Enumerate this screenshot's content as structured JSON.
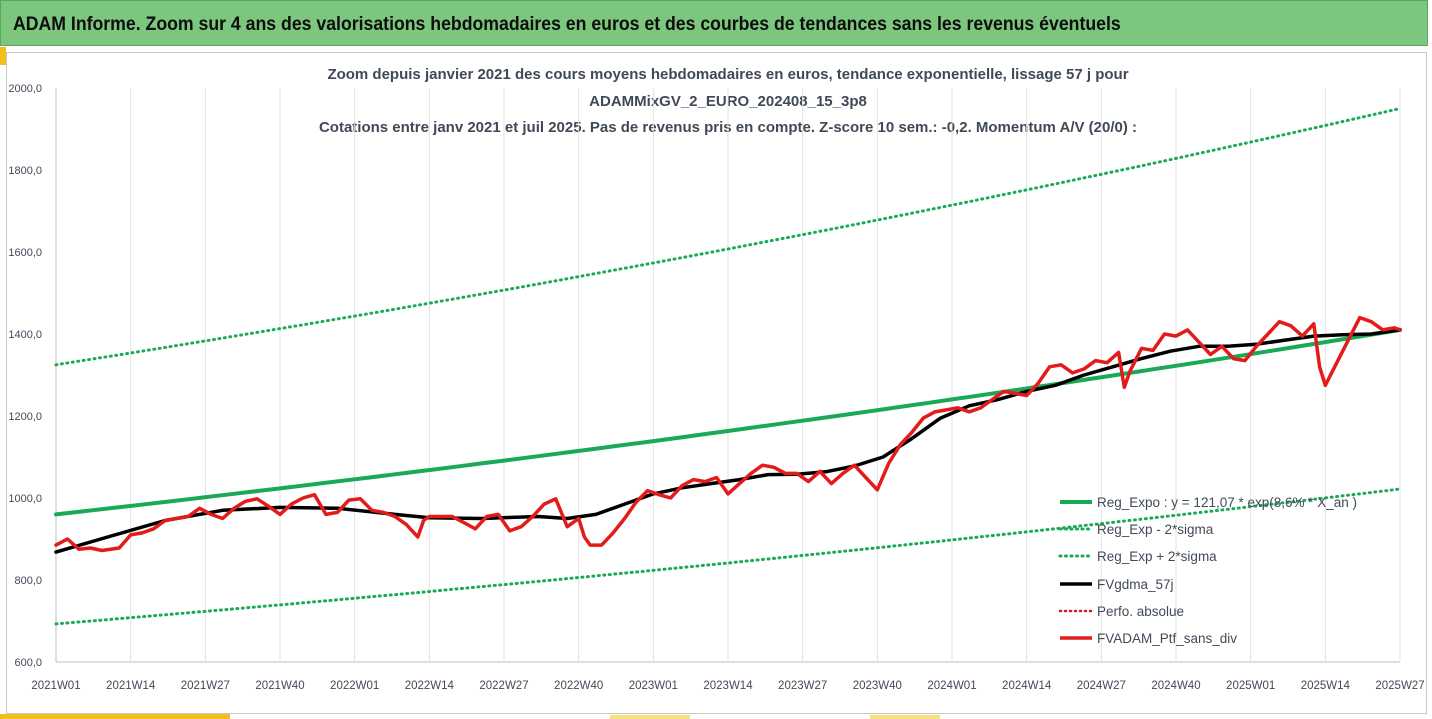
{
  "banner": {
    "title": "ADAM Informe. Zoom sur 4 ans des valorisations hebdomadaires en euros et des courbes de tendances sans les revenus éventuels"
  },
  "chart_data": {
    "type": "line",
    "title": "Zoom depuis janvier 2021 des cours moyens hebdomadaires  en euros, tendance exponentielle, lissage 57 j pour",
    "subtitle": "ADAMMixGV_2_EURO_202408_15_3p8",
    "subtitle2": "Cotations entre janv 2021 et juil 2025. Pas de revenus pris en compte. Z-score 10 sem.: -0,2. Momentum A/V (20/0) :",
    "xlabel": "",
    "ylabel": "",
    "ylim": [
      600,
      2000
    ],
    "yticks": [
      "600,0",
      "800,0",
      "1000,0",
      "1200,0",
      "1400,0",
      "1600,0",
      "1800,0",
      "2000,0"
    ],
    "xlim": [
      1,
      235
    ],
    "xticks": [
      {
        "week": 1,
        "label": "2021W01"
      },
      {
        "week": 14,
        "label": "2021W14"
      },
      {
        "week": 27,
        "label": "2021W27"
      },
      {
        "week": 40,
        "label": "2021W40"
      },
      {
        "week": 53,
        "label": "2022W01"
      },
      {
        "week": 66,
        "label": "2022W14"
      },
      {
        "week": 79,
        "label": "2022W27"
      },
      {
        "week": 92,
        "label": "2022W40"
      },
      {
        "week": 105,
        "label": "2023W01"
      },
      {
        "week": 118,
        "label": "2023W14"
      },
      {
        "week": 131,
        "label": "2023W27"
      },
      {
        "week": 144,
        "label": "2023W40"
      },
      {
        "week": 157,
        "label": "2024W01"
      },
      {
        "week": 170,
        "label": "2024W14"
      },
      {
        "week": 183,
        "label": "2024W27"
      },
      {
        "week": 196,
        "label": "2024W40"
      },
      {
        "week": 209,
        "label": "2025W01"
      },
      {
        "week": 222,
        "label": "2025W14"
      },
      {
        "week": 235,
        "label": "2025W27"
      }
    ],
    "grid": "vertical",
    "legend_position": "right",
    "colors": {
      "reg_expo": "#1aaa55",
      "sigma": "#1aaa55",
      "fvgdma": "#000000",
      "perfo": "#cc1f1f",
      "ptf": "#e31b1b",
      "grid": "#e2e2e2",
      "axis_text": "#404a57"
    },
    "series": [
      {
        "name": "Reg_Expo : y = 121,07 * exp(8,6% * X_an )",
        "key": "reg_expo",
        "style": "solid-thick",
        "x": [
          1,
          235
        ],
        "exp_from_to": [
          960,
          1410
        ]
      },
      {
        "name": "Reg_Exp - 2*sigma",
        "key": "sigma_low",
        "style": "dotted",
        "x": [
          1,
          235
        ],
        "exp_from_to": [
          693,
          1022
        ]
      },
      {
        "name": "Reg_Exp + 2*sigma",
        "key": "sigma_high",
        "style": "dotted",
        "x": [
          1,
          235
        ],
        "exp_from_to": [
          1325,
          1950
        ]
      },
      {
        "name": "FVgdma_57j",
        "key": "fvgdma",
        "style": "solid-thick",
        "x": [
          1,
          10,
          20,
          30,
          40,
          50,
          60,
          66,
          75,
          85,
          90,
          95,
          100,
          105,
          110,
          115,
          120,
          125,
          130,
          135,
          140,
          145,
          150,
          155,
          160,
          165,
          170,
          175,
          180,
          185,
          190,
          195,
          200,
          205,
          210,
          215,
          220,
          225,
          230,
          235
        ],
        "values": [
          868,
          905,
          945,
          970,
          977,
          975,
          960,
          952,
          950,
          955,
          950,
          960,
          985,
          1010,
          1025,
          1035,
          1045,
          1057,
          1058,
          1064,
          1078,
          1100,
          1145,
          1195,
          1225,
          1240,
          1260,
          1275,
          1300,
          1320,
          1340,
          1358,
          1370,
          1370,
          1375,
          1385,
          1395,
          1398,
          1400,
          1410
        ]
      },
      {
        "name": "Perfo. absolue",
        "key": "perfo",
        "style": "dotted"
      },
      {
        "name": "FVADAM_Ptf_sans_div",
        "key": "ptf",
        "style": "solid-thick",
        "x": [
          1,
          3,
          5,
          7,
          9,
          12,
          14,
          16,
          18,
          20,
          22,
          24,
          26,
          28,
          30,
          32,
          34,
          36,
          38,
          40,
          42,
          44,
          46,
          48,
          50,
          52,
          54,
          56,
          58,
          60,
          62,
          64,
          65,
          66,
          68,
          70,
          72,
          74,
          76,
          78,
          80,
          82,
          84,
          86,
          88,
          90,
          92,
          93,
          94,
          96,
          98,
          100,
          102,
          104,
          106,
          108,
          110,
          112,
          114,
          116,
          118,
          120,
          122,
          124,
          126,
          128,
          130,
          132,
          134,
          136,
          138,
          140,
          142,
          144,
          146,
          148,
          150,
          152,
          154,
          156,
          158,
          160,
          162,
          164,
          166,
          168,
          170,
          172,
          174,
          176,
          178,
          180,
          182,
          184,
          186,
          187,
          188,
          190,
          192,
          194,
          196,
          198,
          200,
          202,
          204,
          206,
          208,
          210,
          212,
          214,
          216,
          218,
          220,
          221,
          222,
          224,
          226,
          228,
          230,
          232,
          234,
          235
        ],
        "values": [
          885,
          900,
          875,
          878,
          872,
          878,
          910,
          915,
          925,
          945,
          950,
          955,
          975,
          960,
          950,
          975,
          992,
          998,
          980,
          960,
          985,
          1000,
          1008,
          960,
          965,
          995,
          998,
          970,
          965,
          955,
          935,
          905,
          945,
          955,
          955,
          955,
          940,
          925,
          955,
          960,
          920,
          930,
          955,
          985,
          998,
          930,
          950,
          905,
          885,
          885,
          915,
          950,
          990,
          1018,
          1008,
          1000,
          1030,
          1045,
          1040,
          1050,
          1010,
          1035,
          1060,
          1080,
          1075,
          1060,
          1060,
          1040,
          1065,
          1035,
          1060,
          1080,
          1050,
          1020,
          1085,
          1130,
          1160,
          1195,
          1210,
          1215,
          1220,
          1210,
          1220,
          1240,
          1260,
          1255,
          1250,
          1280,
          1320,
          1325,
          1305,
          1315,
          1335,
          1330,
          1355,
          1270,
          1310,
          1365,
          1360,
          1400,
          1395,
          1410,
          1380,
          1350,
          1370,
          1340,
          1335,
          1370,
          1400,
          1430,
          1420,
          1395,
          1425,
          1320,
          1275,
          1330,
          1385,
          1440,
          1430,
          1410,
          1415,
          1410
        ]
      }
    ]
  }
}
